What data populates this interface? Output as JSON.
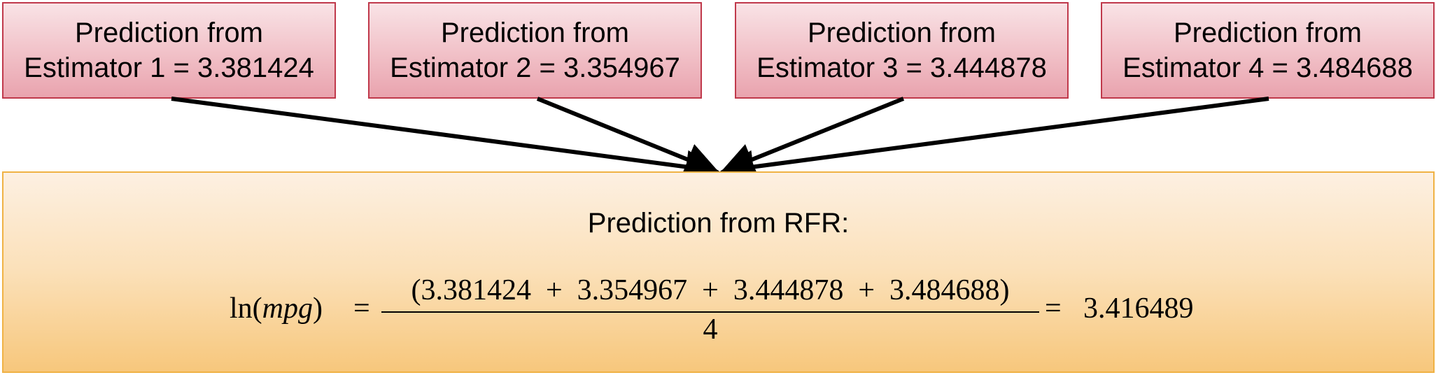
{
  "estimators": [
    {
      "line1": "Prediction from",
      "line2": "Estimator 1 = 3.381424"
    },
    {
      "line1": "Prediction from",
      "line2": "Estimator 2 = 3.354967"
    },
    {
      "line1": "Prediction from",
      "line2": "Estimator 3 = 3.444878"
    },
    {
      "line1": "Prediction from",
      "line2": "Estimator 4 = 3.484688"
    }
  ],
  "result": {
    "title": "Prediction from RFR:",
    "formula": {
      "fn": "ln(",
      "var": "mpg",
      "close": ")",
      "equals": "=",
      "numerator": "(3.381424  +  3.354967  +  3.444878  +  3.484688)",
      "denominator": "4",
      "equals2": "=",
      "value": "3.416489"
    }
  },
  "colors": {
    "estimator_border": "#c0394b",
    "estimator_fill": "#f1c0c7",
    "result_border": "#f0b244",
    "result_fill": "#fbe0b8",
    "arrow": "#000000"
  }
}
